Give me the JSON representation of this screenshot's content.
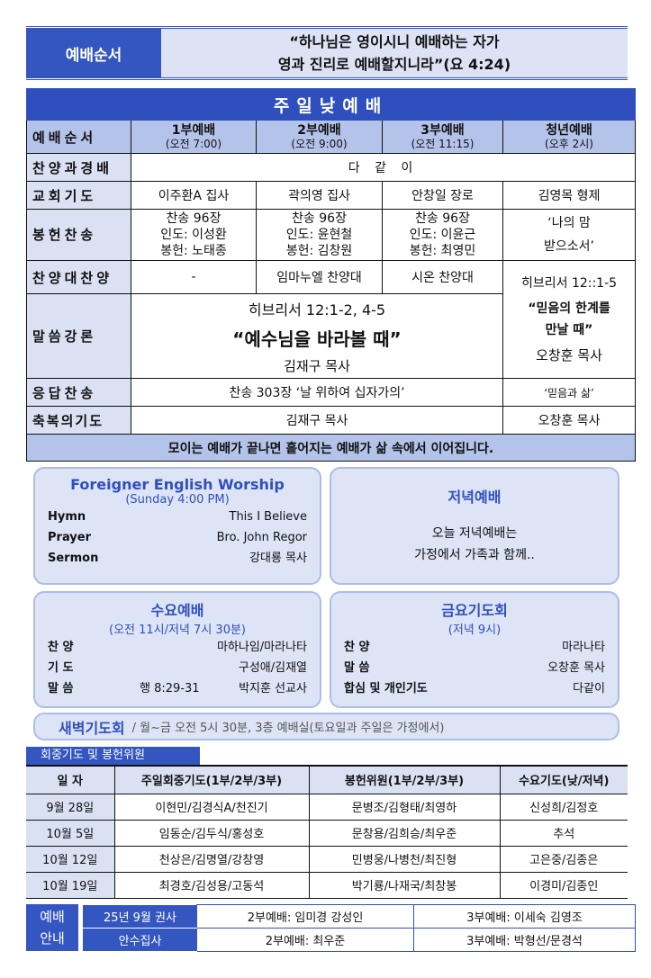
{
  "header": {
    "label": "예배순서",
    "verse_line1": "“하나님은 영이시니 예배하는 자가",
    "verse_line2": "영과 진리로 예배할지니라”(요 4:24)"
  },
  "sunday": {
    "title": "주일낮예배",
    "order_label": "예배순서",
    "services": [
      {
        "name": "1부예배",
        "time": "(오전 7:00)"
      },
      {
        "name": "2부예배",
        "time": "(오전 9:00)"
      },
      {
        "name": "3부예배",
        "time": "(오전 11:15)"
      },
      {
        "name": "청년예배",
        "time": "(오후 2시)"
      }
    ],
    "rows": {
      "praise": {
        "label": "찬양과경배",
        "value": "다 같 이"
      },
      "prayer": {
        "label": "교회기도",
        "values": [
          "이주환A 집사",
          "곽의영 집사",
          "안창일 장로",
          "김영목 형제"
        ]
      },
      "offering": {
        "label": "봉헌찬송",
        "values": [
          [
            "찬송 96장",
            "인도: 이성환",
            "봉헌: 노태종"
          ],
          [
            "찬송 96장",
            "인도: 윤현철",
            "봉헌: 김창원"
          ],
          [
            "찬송 96장",
            "인도: 이윤근",
            "봉헌: 최영민"
          ]
        ],
        "youth": [
          "‘나의 맘",
          "받으소서’"
        ]
      },
      "choir": {
        "label": "찬양대찬양",
        "values": [
          "-",
          "임마누엘 찬양대",
          "시온 찬양대"
        ]
      },
      "sermon": {
        "label": "말씀강론",
        "scripture": "히브리서 12:1-2, 4-5",
        "title": "“예수님을 바라볼 때”",
        "preacher": "김재구 목사",
        "youth": {
          "scripture": "히브리서 12::1-5",
          "title1": "“믿음의 한계를",
          "title2": "만날 때”",
          "preacher": "오창훈 목사"
        }
      },
      "response": {
        "label": "응답찬송",
        "value": "찬송 303장 ‘날 위하여 십자가의’",
        "youth": "‘믿음과 삶’"
      },
      "benediction": {
        "label": "축복의기도",
        "value": "김재구 목사",
        "youth": "오창훈 목사"
      }
    },
    "footer": "모이는 예배가 끝나면 흩어지는 예배가 삶 속에서 이어집니다."
  },
  "english": {
    "title": "Foreigner English Worship",
    "time": "(Sunday 4:00 PM)",
    "rows": [
      {
        "k": "Hymn",
        "v": "This I Believe"
      },
      {
        "k": "Prayer",
        "v": "Bro. John Regor"
      },
      {
        "k": "Sermon",
        "v": "강대룡 목사"
      }
    ]
  },
  "evening": {
    "title": "저녁예배",
    "line1": "오늘 저녁예배는",
    "line2": "가정에서 가족과 함께.."
  },
  "wednesday": {
    "title": "수요예배",
    "time": "(오전 11시/저녁 7시 30분)",
    "rows": [
      {
        "k": "찬 양",
        "m": "",
        "v": "마하나임/마라나타"
      },
      {
        "k": "기 도",
        "m": "",
        "v": "구성애/김재열"
      },
      {
        "k": "말 씀",
        "m": "행 8:29-31",
        "v": "박지훈 선교사"
      }
    ]
  },
  "friday": {
    "title": "금요기도회",
    "time": "(저녁 9시)",
    "rows": [
      {
        "k": "찬 양",
        "v": "마라나타"
      },
      {
        "k": "말 씀",
        "v": "오창훈 목사"
      },
      {
        "k": "합심 및 개인기도",
        "v": "다같이"
      }
    ]
  },
  "dawn": {
    "title": "새벽기도회",
    "detail": "/ 월~금 오전 5시 30분, 3층 예배실(토요일과 주일은 가정에서)"
  },
  "committee": {
    "tab": "회중기도 및 봉헌위원",
    "headers": [
      "일 자",
      "주일회중기도(1부/2부/3부)",
      "봉헌위원(1부/2부/3부)",
      "수요기도(낮/저녁)"
    ],
    "rows": [
      [
        "9월 28일",
        "이현민/김경식A/천진기",
        "문병조/김형태/최영하",
        "신성희/김정호"
      ],
      [
        "10월 5일",
        "임동순/김두식/홍성호",
        "문창용/김희승/최우준",
        "추석"
      ],
      [
        "10월 12일",
        "천상은/김명열/강창영",
        "민병웅/나병천/최진형",
        "고은중/김종은"
      ],
      [
        "10월 19일",
        "최경호/김성용/고동석",
        "박기룡/나재국/최창봉",
        "이경미/김종인"
      ]
    ]
  },
  "guide": {
    "label1": "예배",
    "label2": "안내",
    "rows": [
      {
        "k": "25년 9월 권사",
        "a": "2부예배: 임미경 강성인",
        "b": "3부예배: 이세숙 김영조"
      },
      {
        "k": "안수집사",
        "a": "2부예배: 최우준",
        "b": "3부예배: 박형선/문경석"
      }
    ]
  },
  "colors": {
    "primary": "#3356c0",
    "light": "#dde3f5",
    "header_row": "#b4c3ea"
  }
}
